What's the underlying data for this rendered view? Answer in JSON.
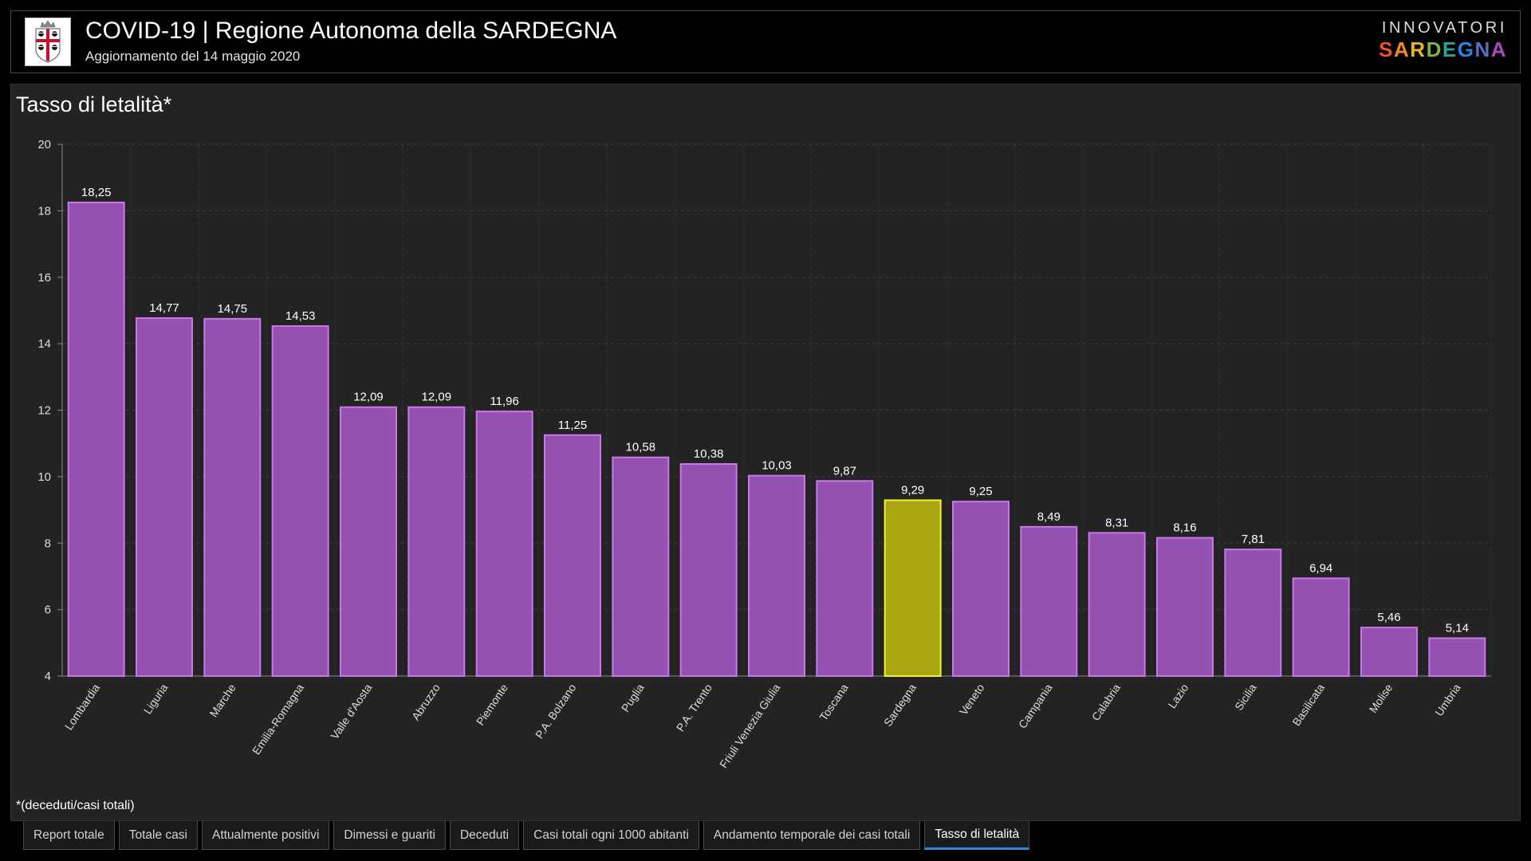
{
  "header": {
    "emblem_icon": "sardinia-coat-of-arms-icon",
    "title": "COVID-19 | Regione Autonoma della SARDEGNA",
    "subtitle": "Aggiornamento del 14 maggio 2020"
  },
  "logo": {
    "line1": "INNOVATORI",
    "line2": "SARDEGNA",
    "line2_colors": [
      "#e8542c",
      "#f08a24",
      "#e6b422",
      "#7cb342",
      "#26a69a",
      "#1e88e5",
      "#5c6bc0",
      "#ab47bc"
    ]
  },
  "chart_data": {
    "type": "bar",
    "title": "Tasso di letalità*",
    "footnote": "*(deceduti/casi totali)",
    "categories": [
      "Lombardia",
      "Liguria",
      "Marche",
      "Emilia-Romagna",
      "Valle d'Aosta",
      "Abruzzo",
      "Piemonte",
      "P.A. Bolzano",
      "Puglia",
      "P.A. Trento",
      "Friuli Venezia Giulia",
      "Toscana",
      "Sardegna",
      "Veneto",
      "Campania",
      "Calabria",
      "Lazio",
      "Sicilia",
      "Basilicata",
      "Molise",
      "Umbria"
    ],
    "values": [
      18.25,
      14.77,
      14.75,
      14.53,
      12.09,
      12.09,
      11.96,
      11.25,
      10.58,
      10.38,
      10.03,
      9.87,
      9.29,
      9.25,
      8.49,
      8.31,
      8.16,
      7.81,
      6.94,
      5.46,
      5.14
    ],
    "value_labels": [
      "18,25",
      "14,77",
      "14,75",
      "14,53",
      "12,09",
      "12,09",
      "11,96",
      "11,25",
      "10,58",
      "10,38",
      "10,03",
      "9,87",
      "9,29",
      "9,25",
      "8,49",
      "8,31",
      "8,16",
      "7,81",
      "6,94",
      "5,46",
      "5,14"
    ],
    "ylim": [
      4,
      20
    ],
    "yticks": [
      4,
      6,
      8,
      10,
      12,
      14,
      16,
      18,
      20
    ],
    "grid": true,
    "highlight_index": 12,
    "colors": {
      "bar_fill": "#9551af",
      "bar_stroke": "#c977ea",
      "highlight_fill": "#a8a712",
      "highlight_stroke": "#f2f230",
      "grid": "#3d3d3d",
      "axis": "#8a8a8a"
    }
  },
  "tabs": {
    "active_index": 7,
    "items": [
      {
        "label": "Report totale"
      },
      {
        "label": "Totale casi"
      },
      {
        "label": "Attualmente positivi"
      },
      {
        "label": "Dimessi e guariti"
      },
      {
        "label": "Deceduti"
      },
      {
        "label": "Casi totali ogni 1000 abitanti"
      },
      {
        "label": "Andamento temporale dei casi totali"
      },
      {
        "label": "Tasso di letalità"
      }
    ]
  }
}
